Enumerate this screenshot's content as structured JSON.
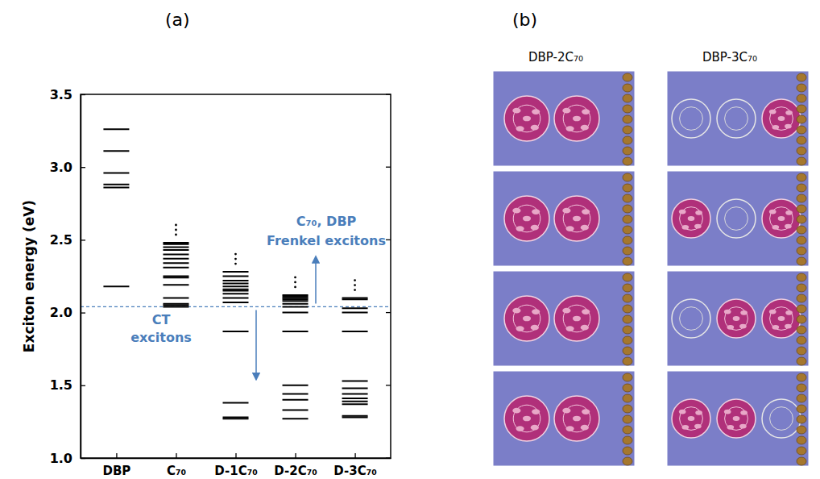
{
  "chart_data": [
    {
      "type": "levels",
      "panel_label": "(a)",
      "y_label": "Exciton energy (eV)",
      "categories": [
        "DBP",
        "C₇₀",
        "D-1C₇₀",
        "D-2C₇₀",
        "D-3C₇₀"
      ],
      "levels": [
        [
          2.18,
          2.86,
          2.88,
          2.96,
          3.11,
          3.26
        ],
        [
          2.04,
          2.05,
          2.06,
          2.1,
          2.19,
          2.24,
          2.25,
          2.31,
          2.34,
          2.37,
          2.4,
          2.43,
          2.45,
          2.47,
          2.48
        ],
        [
          1.27,
          1.28,
          1.38,
          1.87,
          2.07,
          2.1,
          2.13,
          2.15,
          2.16,
          2.18,
          2.2,
          2.22,
          2.25,
          2.28
        ],
        [
          1.27,
          1.33,
          1.4,
          1.44,
          1.5,
          1.87,
          2.0,
          2.04,
          2.06,
          2.08,
          2.09,
          2.1,
          2.11,
          2.12
        ],
        [
          1.28,
          1.29,
          1.37,
          1.39,
          1.41,
          1.44,
          1.48,
          1.53,
          1.87,
          2.0,
          2.03,
          2.09,
          2.1
        ]
      ],
      "color": "#000000",
      "ylim": [
        1.0,
        3.5
      ],
      "yticks": [
        {
          "value": 1,
          "label": "1.0"
        },
        {
          "value": 1.5,
          "label": "1.5"
        },
        {
          "value": 2,
          "label": "2.0"
        },
        {
          "value": 2.5,
          "label": "2.5"
        },
        {
          "value": 3,
          "label": "3.0"
        },
        {
          "value": 3.5,
          "label": "3.5"
        }
      ],
      "threshold": 2.04,
      "annotations": [
        {
          "lines": [
            "CT",
            "excitons"
          ],
          "direction": "down"
        },
        {
          "lines": [
            "C₇₀, DBP",
            "Frenkel excitons"
          ],
          "direction": "up"
        }
      ]
    },
    {
      "type": "image",
      "panel_label": "(b)",
      "columns": [
        "DBP-2C₇₀",
        "DBP-3C₇₀"
      ]
    }
  ]
}
